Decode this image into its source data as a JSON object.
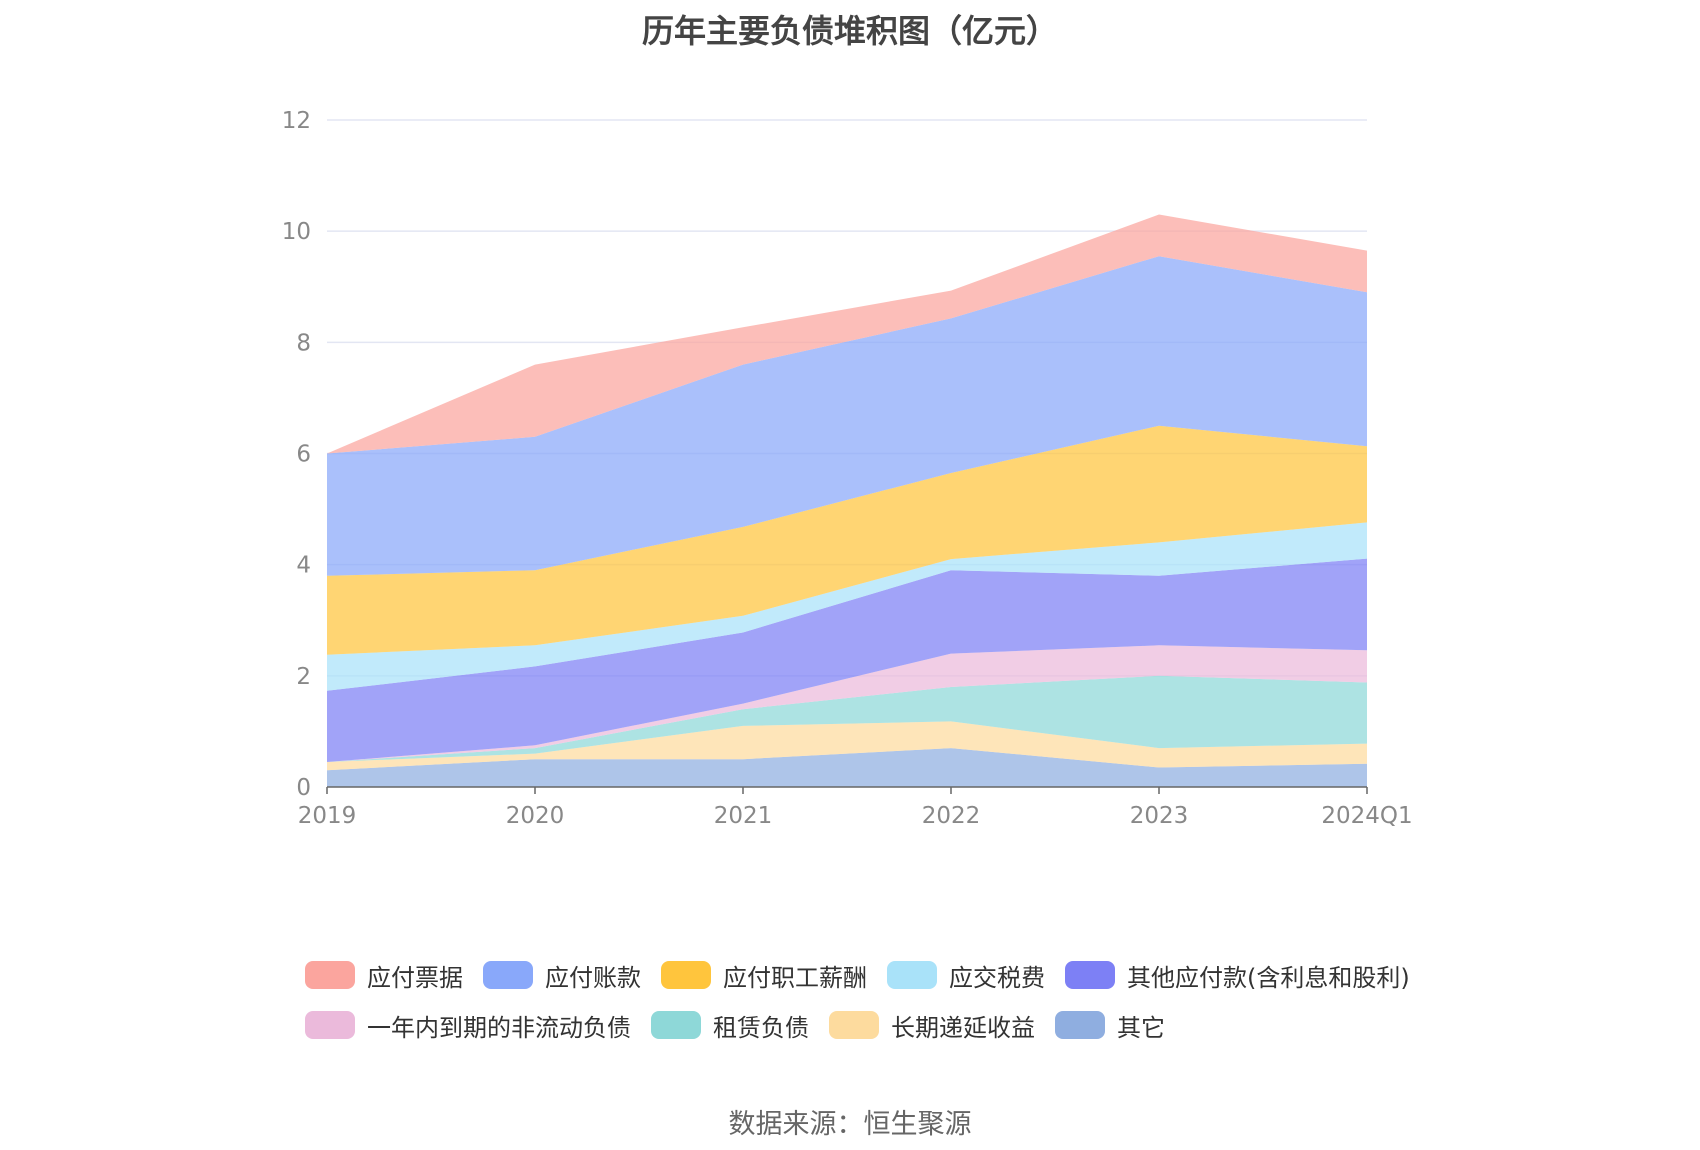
{
  "chart_data": {
    "type": "area",
    "stacked": true,
    "title": "历年主要负债堆积图（亿元）",
    "xlabel": "",
    "ylabel": "",
    "categories": [
      "2019",
      "2020",
      "2021",
      "2022",
      "2023",
      "2024Q1"
    ],
    "ylim": [
      0,
      12
    ],
    "yticks": [
      0,
      2,
      4,
      6,
      8,
      10,
      12
    ],
    "grid": true,
    "legend_position": "bottom",
    "series": [
      {
        "name": "其它",
        "color": "#8FAEE0",
        "values": [
          0.3,
          0.5,
          0.5,
          0.7,
          0.35,
          0.42
        ]
      },
      {
        "name": "长期递延收益",
        "color": "#FDDB9E",
        "values": [
          0.15,
          0.1,
          0.6,
          0.48,
          0.35,
          0.36
        ]
      },
      {
        "name": "租赁负债",
        "color": "#8ED8D8",
        "values": [
          0.0,
          0.1,
          0.3,
          0.62,
          1.3,
          1.1
        ]
      },
      {
        "name": "一年内到期的非流动负债",
        "color": "#EBBADB",
        "values": [
          0.0,
          0.05,
          0.1,
          0.6,
          0.55,
          0.58
        ]
      },
      {
        "name": "其他应付款(含利息和股利)",
        "color": "#7D80F5",
        "values": [
          1.28,
          1.42,
          1.28,
          1.5,
          1.25,
          1.65
        ]
      },
      {
        "name": "应交税费",
        "color": "#A9E2F9",
        "values": [
          0.65,
          0.38,
          0.3,
          0.2,
          0.6,
          0.65
        ]
      },
      {
        "name": "应付职工薪酬",
        "color": "#FFC53D",
        "values": [
          1.42,
          1.35,
          1.6,
          1.55,
          2.1,
          1.37
        ]
      },
      {
        "name": "应付账款",
        "color": "#89A8FA",
        "values": [
          2.2,
          2.4,
          2.92,
          2.78,
          3.05,
          2.77
        ]
      },
      {
        "name": "应付票据",
        "color": "#FBA59E",
        "values": [
          0.0,
          1.3,
          0.67,
          0.5,
          0.75,
          0.75
        ]
      }
    ],
    "source": "数据来源：恒生聚源"
  },
  "legend": {
    "row1": [
      "应付票据",
      "应付账款",
      "应付职工薪酬",
      "应交税费",
      "其他应付款(含利息和股利)"
    ],
    "row2": [
      "一年内到期的非流动负债",
      "租赁负债",
      "长期递延收益",
      "其它"
    ]
  }
}
